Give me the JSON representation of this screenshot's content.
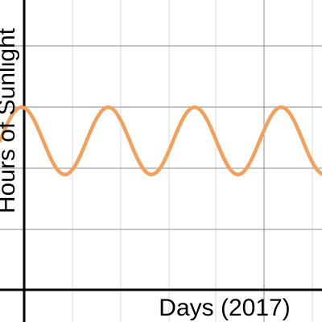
{
  "chart_data": {
    "type": "line",
    "title": "",
    "xlabel": "Days (2017)",
    "ylabel": "Hours of Sunlight",
    "grid": true,
    "series": [
      {
        "color": "#f5a05a",
        "x": [
          0,
          0.25,
          0.5,
          0.75,
          1,
          1.25,
          1.5,
          1.75,
          2,
          2.25,
          2.5,
          2.75,
          3,
          3.25,
          3.5,
          3.75
        ],
        "y": [
          11.8,
          12.5,
          12.9,
          12.5,
          11.8,
          11.1,
          10.7,
          11.1,
          11.8,
          12.5,
          12.9,
          12.5,
          11.8,
          11.1,
          10.7,
          11.1
        ]
      }
    ]
  }
}
